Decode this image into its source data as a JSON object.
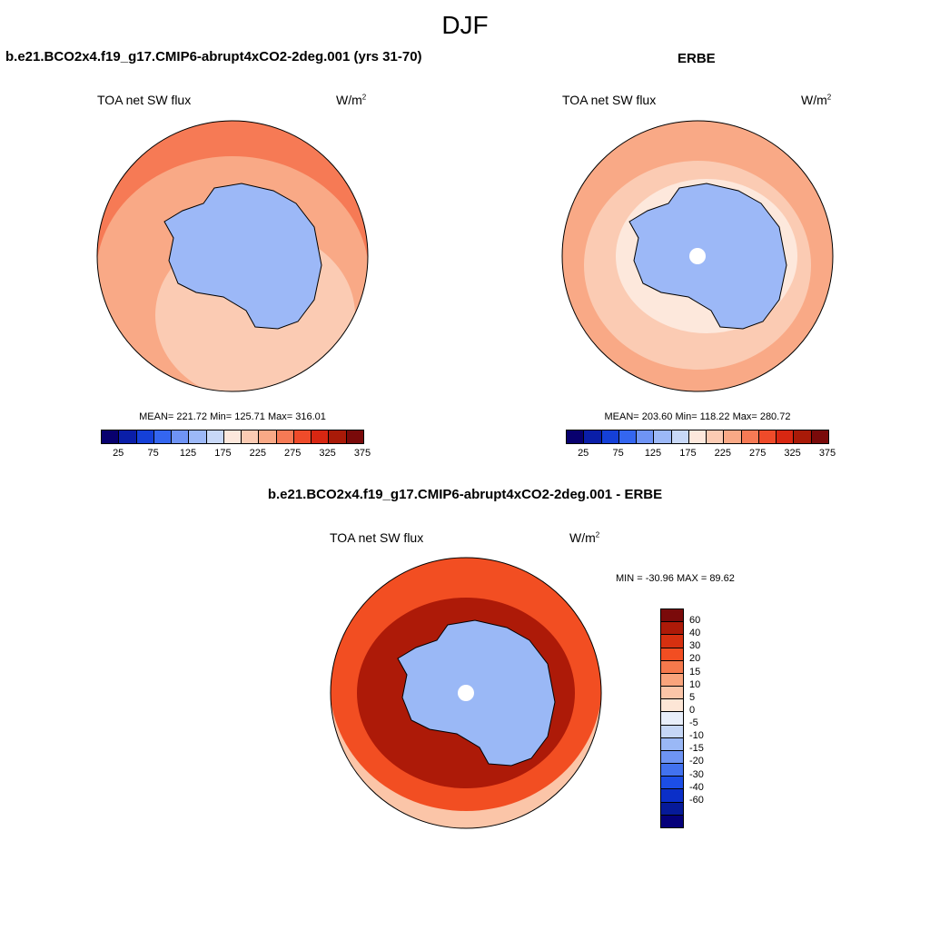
{
  "page_title": "DJF",
  "panels": [
    {
      "title": "b.e21.BCO2x4.f19_g17.CMIP6-abrupt4xCO2-2deg.001 (yrs 31-70)",
      "variable": "TOA net SW flux",
      "units_base": "W/m",
      "units_exp": "2",
      "stats": "MEAN= 221.72  Min= 125.71  Max= 316.01",
      "field": {
        "land": 130,
        "ring": 210,
        "mid": 240,
        "outer": 270
      }
    },
    {
      "title": "ERBE",
      "variable": "TOA net SW flux",
      "units_base": "W/m",
      "units_exp": "2",
      "stats": "MEAN= 203.60  Min= 118.22  Max= 280.72",
      "field": {
        "land": 140,
        "ring": 175,
        "mid": 215,
        "outer": 235
      }
    },
    {
      "title": "b.e21.BCO2x4.f19_g17.CMIP6-abrupt4xCO2-2deg.001 - ERBE",
      "variable": "TOA net SW flux",
      "units_base": "W/m",
      "units_exp": "2",
      "stats": "MIN = -30.96 MAX =  89.62",
      "field": {
        "land": -10,
        "ring": 45,
        "mid": 25,
        "outer": 10
      }
    }
  ],
  "colorbar_abs": {
    "colors": [
      "#08006e",
      "#0a1ea8",
      "#1540d8",
      "#3466f0",
      "#6f94f5",
      "#9cb8f7",
      "#c8d8f7",
      "#fde8dc",
      "#fbcbb3",
      "#f9a986",
      "#f67a55",
      "#ef4b2a",
      "#d82712",
      "#a91a08",
      "#7a0a0a"
    ],
    "tick_labels": [
      "25",
      "75",
      "125",
      "175",
      "225",
      "275",
      "325",
      "375"
    ]
  },
  "colorbar_diff": {
    "colors": [
      "#7a0a0a",
      "#ad1a08",
      "#d63010",
      "#f24e22",
      "#f6794c",
      "#f9a47c",
      "#fbc5a8",
      "#fde6d6",
      "#e8eefa",
      "#c5d6f6",
      "#9ab8f6",
      "#6e94f3",
      "#4272ef",
      "#1c4ee6",
      "#0b2fc8",
      "#061a99",
      "#05007a"
    ],
    "tick_labels": [
      "60",
      "40",
      "30",
      "20",
      "15",
      "10",
      "5",
      "0",
      "-5",
      "-10",
      "-15",
      "-20",
      "-30",
      "-40",
      "-60"
    ]
  }
}
